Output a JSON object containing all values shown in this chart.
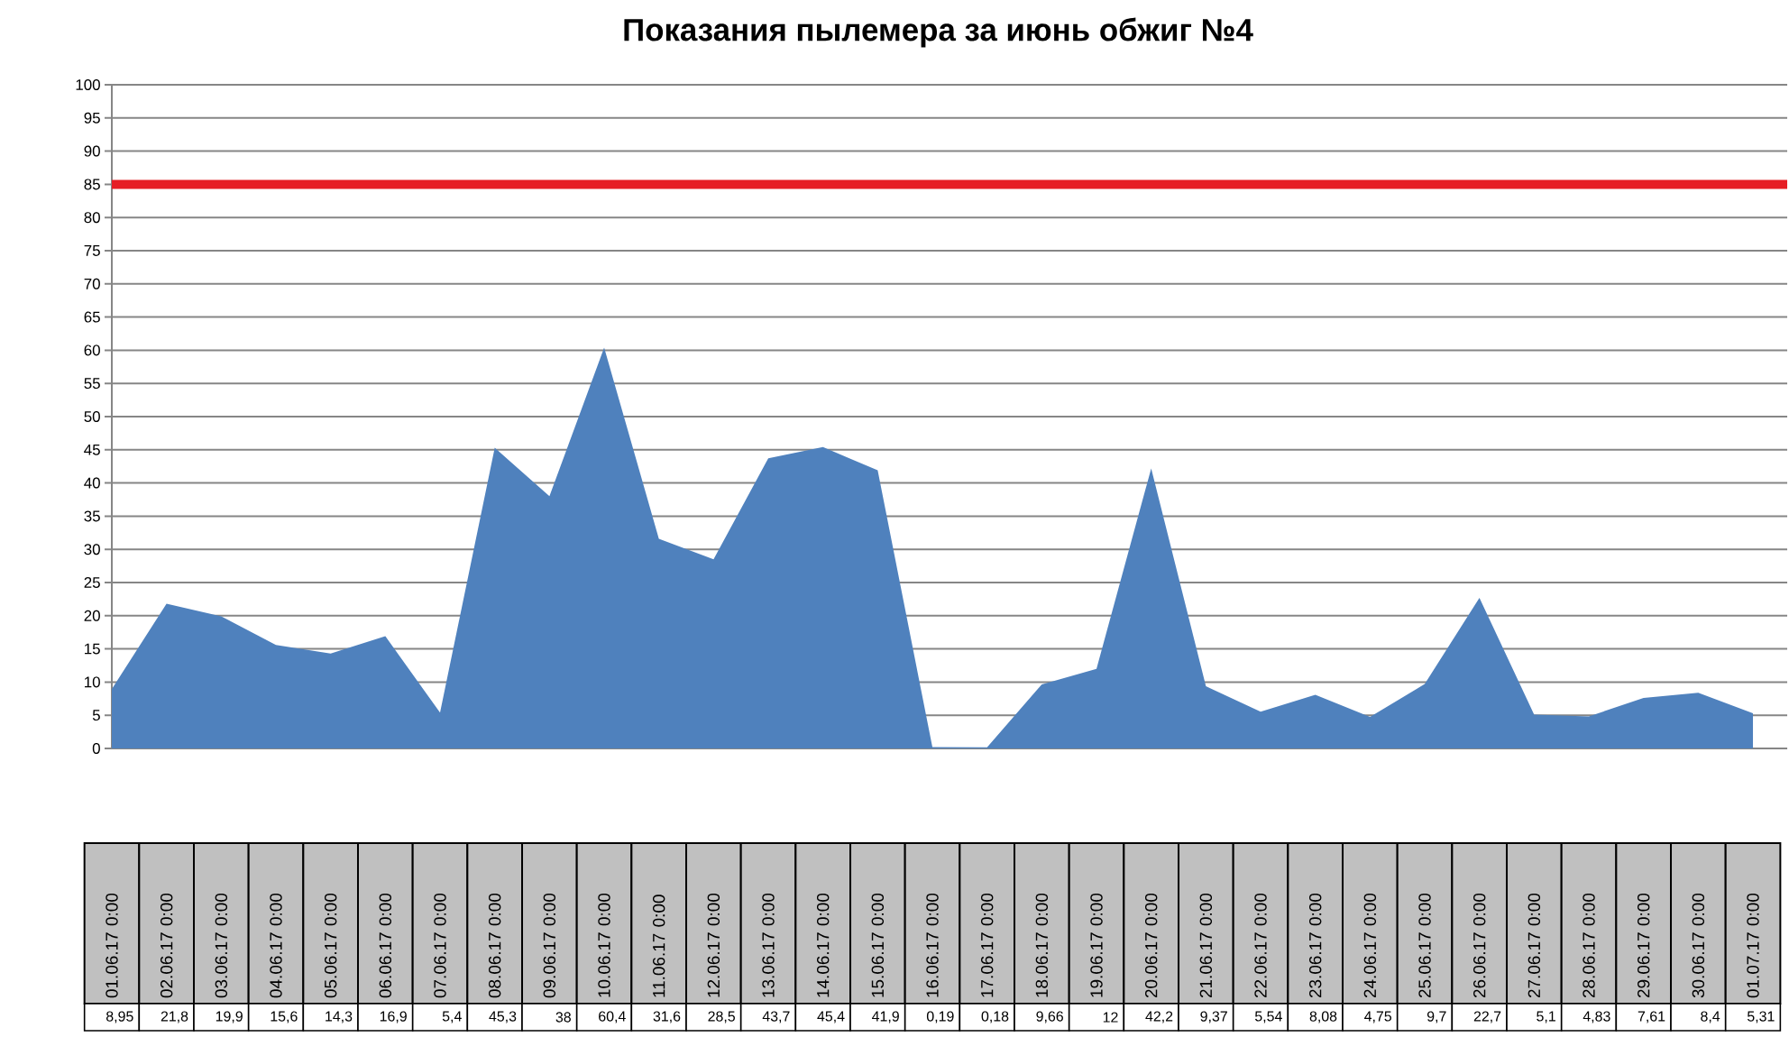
{
  "chart_data": {
    "type": "area",
    "title": "Показания пылемера за июнь обжиг №4",
    "categories": [
      "01.06.17 0:00",
      "02.06.17 0:00",
      "03.06.17 0:00",
      "04.06.17 0:00",
      "05.06.17 0:00",
      "06.06.17 0:00",
      "07.06.17 0:00",
      "08.06.17 0:00",
      "09.06.17 0:00",
      "10.06.17 0:00",
      "11.06.17 0:00",
      "12.06.17 0:00",
      "13.06.17 0:00",
      "14.06.17 0:00",
      "15.06.17 0:00",
      "16.06.17 0:00",
      "17.06.17 0:00",
      "18.06.17 0:00",
      "19.06.17 0:00",
      "20.06.17 0:00",
      "21.06.17 0:00",
      "22.06.17 0:00",
      "23.06.17 0:00",
      "24.06.17 0:00",
      "25.06.17 0:00",
      "26.06.17 0:00",
      "27.06.17 0:00",
      "28.06.17 0:00",
      "29.06.17 0:00",
      "30.06.17 0:00",
      "01.07.17 0:00"
    ],
    "values": [
      8.95,
      21.8,
      19.9,
      15.6,
      14.3,
      16.9,
      5.4,
      45.3,
      38,
      60.4,
      31.6,
      28.5,
      43.7,
      45.4,
      41.9,
      0.19,
      0.18,
      9.66,
      12,
      42.2,
      9.37,
      5.54,
      8.08,
      4.75,
      9.7,
      22.7,
      5.1,
      4.83,
      7.61,
      8.4,
      5.31
    ],
    "value_labels": [
      "8,95",
      "21,8",
      "19,9",
      "15,6",
      "14,3",
      "16,9",
      "5,4",
      "45,3",
      "38",
      "60,4",
      "31,6",
      "28,5",
      "43,7",
      "45,4",
      "41,9",
      "0,19",
      "0,18",
      "9,66",
      "12",
      "42,2",
      "9,37",
      "5,54",
      "8,08",
      "4,75",
      "9,7",
      "22,7",
      "5,1",
      "4,83",
      "7,61",
      "8,4",
      "5,31"
    ],
    "color": "#4f81bd",
    "ylim": [
      0,
      100
    ],
    "yticks": [
      0,
      5,
      10,
      15,
      20,
      25,
      30,
      35,
      40,
      45,
      50,
      55,
      60,
      65,
      70,
      75,
      80,
      85,
      90,
      95,
      100
    ],
    "grid": "y",
    "ref_lines": [
      {
        "axis": "y",
        "value": 85,
        "color": "#e61e25"
      }
    ]
  }
}
